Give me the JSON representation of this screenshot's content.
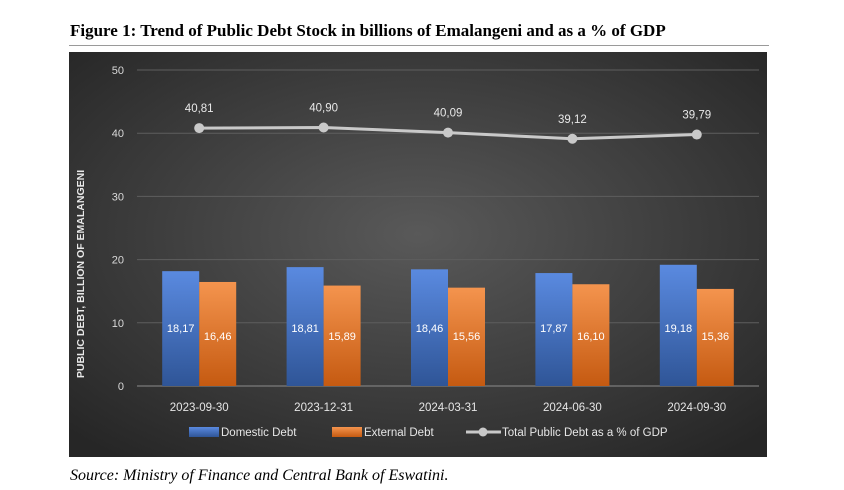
{
  "figure_title": "Figure 1: Trend of Public Debt Stock in billions of Emalangeni and as a % of GDP",
  "source": "Source: Ministry of Finance and Central Bank of Eswatini.",
  "colors": {
    "domestic": "#4472c4",
    "external": "#ed7d31",
    "line": "#a5a5a5",
    "background_center": "#595959",
    "background_edge": "#262626"
  },
  "chart_data": {
    "type": "bar",
    "categories": [
      "2023-09-30",
      "2023-12-31",
      "2024-03-31",
      "2024-06-30",
      "2024-09-30"
    ],
    "ylabel": "PUBLIC DEBT, BILLION OF EMALANGENI",
    "ylim": [
      0,
      50
    ],
    "yticks": [
      "0",
      "10",
      "20",
      "30",
      "40",
      "50"
    ],
    "grid": true,
    "legend_position": "bottom",
    "series": [
      {
        "name": "Domestic Debt",
        "kind": "bar",
        "values": [
          18.17,
          18.81,
          18.46,
          17.87,
          19.18
        ],
        "labels": [
          "18,17",
          "18,81",
          "18,46",
          "17,87",
          "19,18"
        ]
      },
      {
        "name": "External Debt",
        "kind": "bar",
        "values": [
          16.46,
          15.89,
          15.56,
          16.1,
          15.36
        ],
        "labels": [
          "16,46",
          "15,89",
          "15,56",
          "16,10",
          "15,36"
        ]
      },
      {
        "name": "Total Public Debt as a % of GDP",
        "kind": "line",
        "values": [
          40.81,
          40.9,
          40.09,
          39.12,
          39.79
        ],
        "labels": [
          "40,81",
          "40,90",
          "40,09",
          "39,12",
          "39,79"
        ]
      }
    ]
  }
}
